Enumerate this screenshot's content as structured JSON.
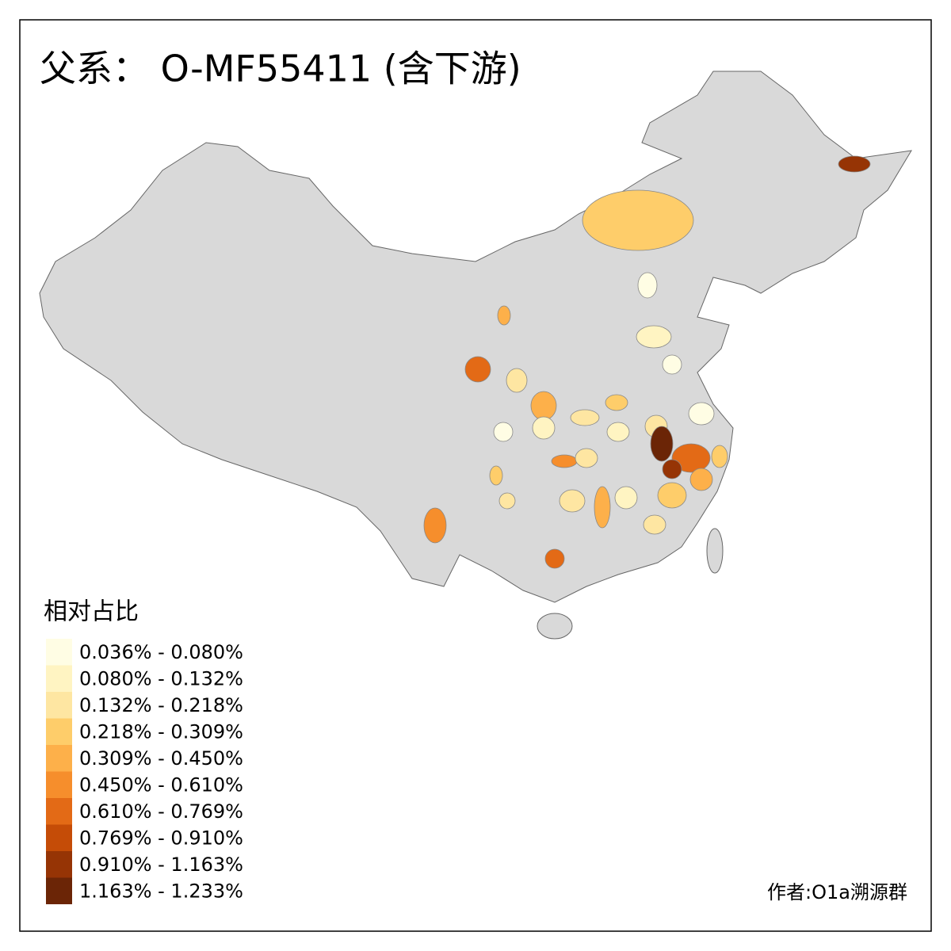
{
  "title": "父系： O-MF55411 (含下游)",
  "legend": {
    "title": "相对占比",
    "items": [
      {
        "label": "0.036% - 0.080%",
        "color": "#fffde4"
      },
      {
        "label": "0.080% - 0.132%",
        "color": "#fff4c2"
      },
      {
        "label": "0.132% - 0.218%",
        "color": "#fee6a2"
      },
      {
        "label": "0.218% - 0.309%",
        "color": "#fecd6a"
      },
      {
        "label": "0.309% - 0.450%",
        "color": "#fdb04a"
      },
      {
        "label": "0.450% - 0.610%",
        "color": "#f68e2c"
      },
      {
        "label": "0.610% - 0.769%",
        "color": "#e36a16"
      },
      {
        "label": "0.769% - 0.910%",
        "color": "#c54c07"
      },
      {
        "label": "0.910% - 1.163%",
        "color": "#963405"
      },
      {
        "label": "1.163% - 1.233%",
        "color": "#6b2506"
      }
    ]
  },
  "credit": "作者:O1a溯源群"
}
